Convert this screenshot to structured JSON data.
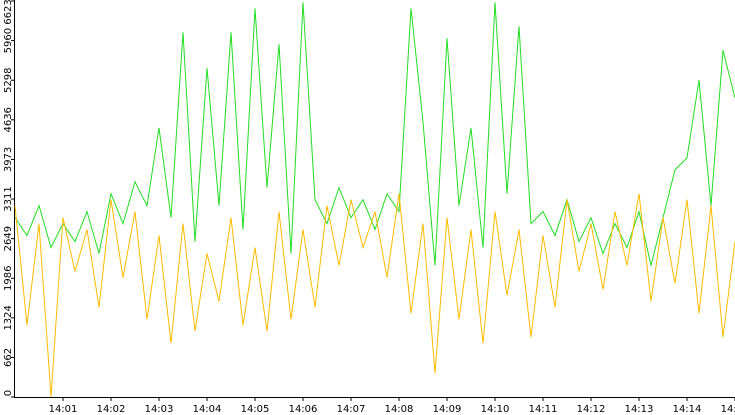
{
  "chart_data": {
    "type": "line",
    "x": [
      840,
      840.25,
      840.5,
      840.75,
      841,
      841.25,
      841.5,
      841.75,
      842,
      842.25,
      842.5,
      842.75,
      843,
      843.25,
      843.5,
      843.75,
      844,
      844.25,
      844.5,
      844.75,
      845,
      845.25,
      845.5,
      845.75,
      846,
      846.25,
      846.5,
      846.75,
      847,
      847.25,
      847.5,
      847.75,
      848,
      848.25,
      848.5,
      848.75,
      849,
      849.25,
      849.5,
      849.75,
      850,
      850.25,
      850.5,
      850.75,
      851,
      851.25,
      851.5,
      851.75,
      852,
      852.25,
      852.5,
      852.75,
      853,
      853.25,
      853.5,
      853.75,
      854,
      854.25,
      854.5,
      854.75,
      855
    ],
    "series": [
      {
        "color": "#22dd22",
        "values": [
          3000,
          2700,
          3200,
          2500,
          2900,
          2600,
          3100,
          2400,
          3400,
          2900,
          3600,
          3200,
          4500,
          3000,
          6100,
          2600,
          5500,
          3200,
          6100,
          2800,
          6500,
          3500,
          5900,
          2400,
          6600,
          3300,
          2900,
          3500,
          3000,
          3300,
          2800,
          3400,
          3100,
          6500,
          4600,
          2200,
          6000,
          3200,
          4500,
          2500,
          6600,
          3400,
          6200,
          2900,
          3100,
          2700,
          3300,
          2600,
          3000,
          2400,
          2900,
          2500,
          3100,
          2200,
          3000,
          3800,
          4000,
          5300,
          3200,
          5800,
          5000
        ]
      },
      {
        "color": "#ffbb00",
        "values": [
          3200,
          1200,
          2900,
          0,
          3000,
          2100,
          2800,
          1500,
          3300,
          2000,
          3100,
          1300,
          2700,
          900,
          2900,
          1100,
          2400,
          1600,
          3000,
          1200,
          2500,
          1100,
          3100,
          1300,
          2800,
          1500,
          3200,
          2200,
          3300,
          2500,
          3100,
          2000,
          3400,
          1400,
          2900,
          400,
          3000,
          1300,
          2800,
          900,
          3100,
          1700,
          2800,
          1000,
          2700,
          1500,
          3300,
          2100,
          2900,
          1800,
          3100,
          2200,
          3400,
          1600,
          3000,
          1900,
          3300,
          1400,
          3200,
          1000,
          2600
        ]
      }
    ],
    "xlim": [
      840,
      855
    ],
    "xticks": [
      {
        "value": 841,
        "label": "14:01"
      },
      {
        "value": 842,
        "label": "14:02"
      },
      {
        "value": 843,
        "label": "14:03"
      },
      {
        "value": 844,
        "label": "14:04"
      },
      {
        "value": 845,
        "label": "14:05"
      },
      {
        "value": 846,
        "label": "14:06"
      },
      {
        "value": 847,
        "label": "14:07"
      },
      {
        "value": 848,
        "label": "14:08"
      },
      {
        "value": 849,
        "label": "14:09"
      },
      {
        "value": 850,
        "label": "14:10"
      },
      {
        "value": 851,
        "label": "14:11"
      },
      {
        "value": 852,
        "label": "14:12"
      },
      {
        "value": 853,
        "label": "14:13"
      },
      {
        "value": 854,
        "label": "14:14"
      },
      {
        "value": 855,
        "label": "14:15"
      }
    ],
    "ylim": [
      0,
      6623
    ],
    "yticks": [
      0,
      662,
      1324,
      1986,
      2649,
      3311,
      3973,
      4636,
      5298,
      5960,
      6623
    ]
  }
}
